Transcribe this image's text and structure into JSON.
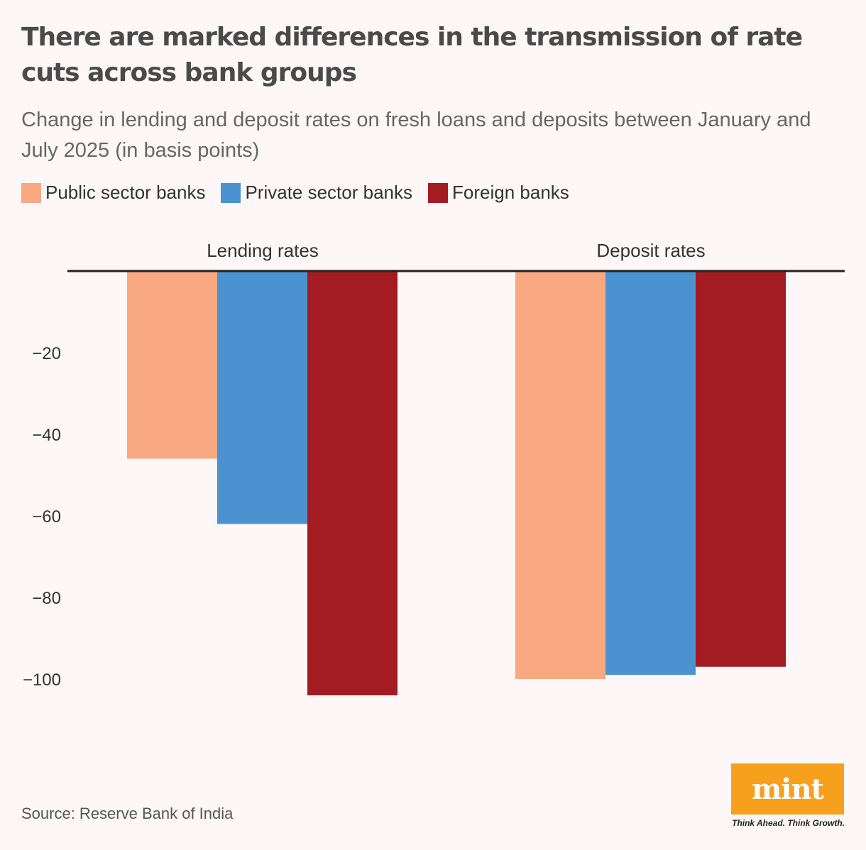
{
  "title": "There are marked differences in the transmission of rate cuts across bank groups",
  "subtitle": "Change in lending and deposit rates on fresh loans and deposits between January and July 2025 (in basis points)",
  "legend": [
    {
      "label": "Public sector banks",
      "color": "#f8a982"
    },
    {
      "label": "Private sector banks",
      "color": "#4b93d0"
    },
    {
      "label": "Foreign banks",
      "color": "#a31c21"
    }
  ],
  "source": "Source: Reserve Bank of India",
  "logo": {
    "text": "mint",
    "tagline": "Think Ahead. Think Growth."
  },
  "chart_data": {
    "type": "bar",
    "categories": [
      "Lending rates",
      "Deposit rates"
    ],
    "series": [
      {
        "name": "Public sector banks",
        "values": [
          -46,
          -100
        ],
        "color": "#f8a982"
      },
      {
        "name": "Private sector banks",
        "values": [
          -62,
          -99
        ],
        "color": "#4b93d0"
      },
      {
        "name": "Foreign banks",
        "values": [
          -104,
          -97
        ],
        "color": "#a31c21"
      }
    ],
    "yticks": [
      -20,
      -40,
      -60,
      -80,
      -100
    ],
    "ytick_labels": [
      "−20",
      "−40",
      "−60",
      "−80",
      "−100"
    ],
    "ylim": [
      -110,
      0
    ],
    "grid": false,
    "legend_position": "top-left"
  }
}
